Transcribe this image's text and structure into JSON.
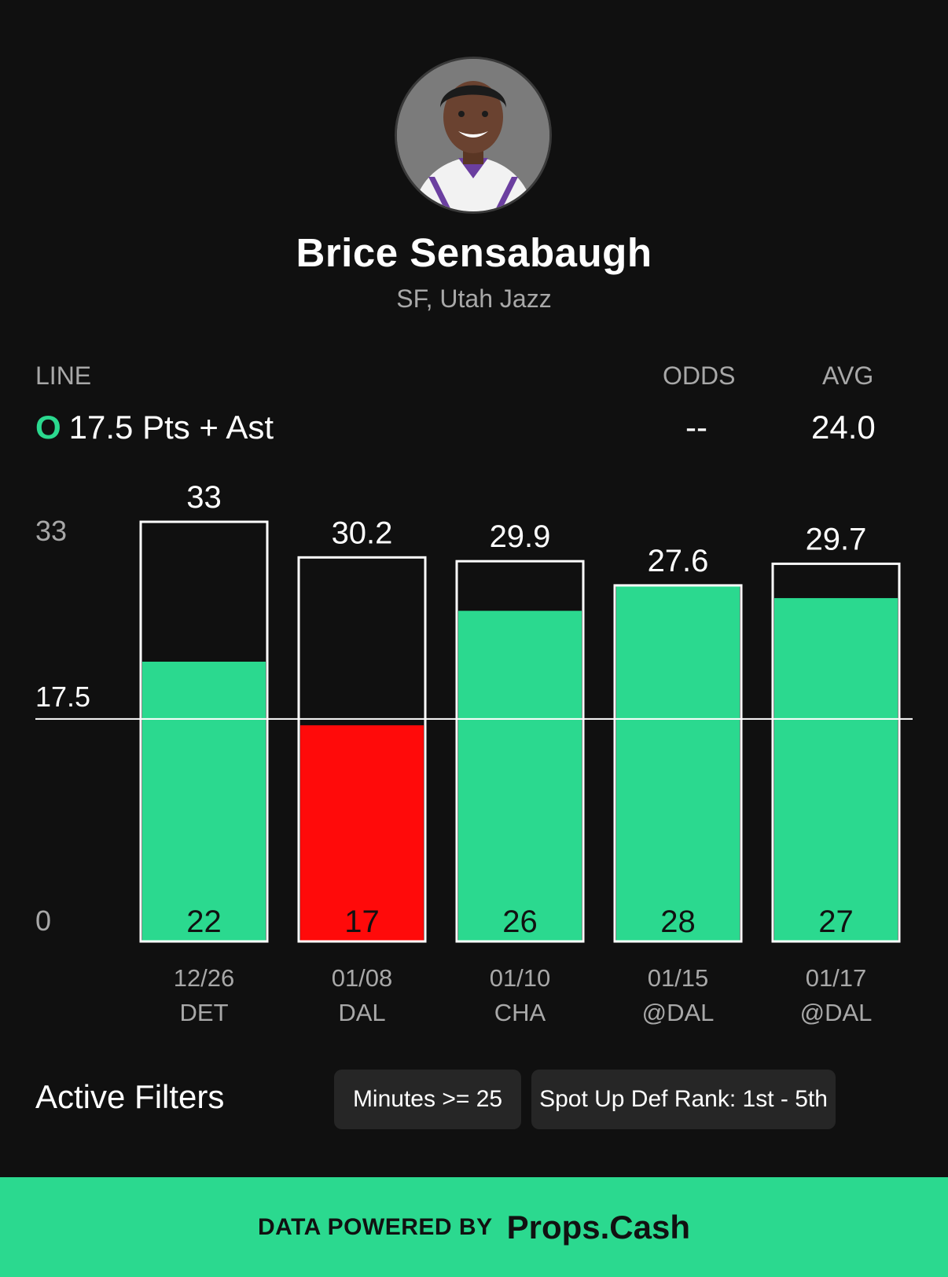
{
  "player": {
    "name": "Brice Sensabaugh",
    "subtitle": "SF, Utah Jazz"
  },
  "stats": {
    "line_label": "LINE",
    "line_side": "O",
    "line_value": "17.5 Pts + Ast",
    "odds_label": "ODDS",
    "odds_value": "--",
    "avg_label": "AVG",
    "avg_value": "24.0"
  },
  "chart_data": {
    "type": "bar",
    "line": 17.5,
    "ylim": [
      0,
      33
    ],
    "y_ticks": [
      "0",
      "17.5",
      "33"
    ],
    "categories": [
      {
        "date": "12/26",
        "opp": "DET"
      },
      {
        "date": "01/08",
        "opp": "DAL"
      },
      {
        "date": "01/10",
        "opp": "CHA"
      },
      {
        "date": "01/15",
        "opp": "@DAL"
      },
      {
        "date": "01/17",
        "opp": "@DAL"
      }
    ],
    "series": [
      {
        "values": [
          22,
          17,
          26,
          28,
          27
        ]
      },
      {
        "values": [
          33,
          30.2,
          29.9,
          27.6,
          29.7
        ]
      }
    ],
    "colors": {
      "over": "#2bd98f",
      "under": "#ff0a0a",
      "outline": "#ffffff",
      "line": "#ffffff"
    }
  },
  "filters": {
    "title": "Active Filters",
    "chips": [
      "Minutes >= 25",
      "Spot Up Def Rank: 1st - 5th"
    ]
  },
  "footer": {
    "prefix": "DATA POWERED BY",
    "brand": "Props.Cash"
  }
}
